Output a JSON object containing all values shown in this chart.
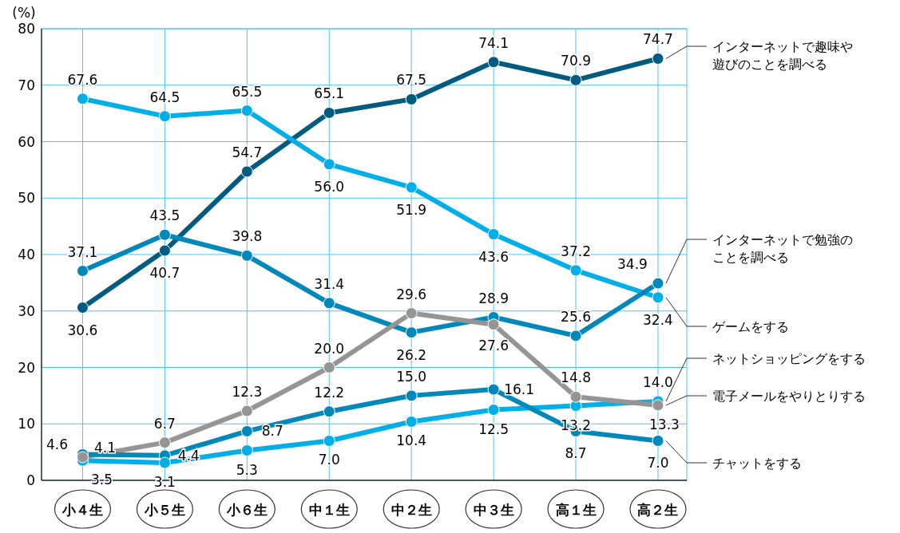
{
  "chart_data": {
    "type": "line",
    "ylabel": "(%)",
    "categories": [
      "小４生",
      "小５生",
      "小６生",
      "中１生",
      "中２生",
      "中３生",
      "高１生",
      "高２生"
    ],
    "ylim": [
      0,
      80
    ],
    "yticks": [
      0,
      10,
      20,
      30,
      40,
      50,
      60,
      70,
      80
    ],
    "grid": true,
    "marker": "circle",
    "series": [
      {
        "name": "インターネットで趣味や遊びのことを調べる",
        "color": "#005b80",
        "values": [
          30.6,
          40.7,
          54.7,
          65.1,
          67.5,
          74.1,
          70.9,
          74.7
        ],
        "value_labels": [
          "30.6",
          "40.7",
          "54.7",
          "65.1",
          "67.5",
          "74.1",
          "70.9",
          "74.7"
        ]
      },
      {
        "name": "ゲームをする",
        "color": "#00aee8",
        "values": [
          67.6,
          64.5,
          65.5,
          56.0,
          51.9,
          43.6,
          37.2,
          32.4
        ],
        "value_labels": [
          "67.6",
          "64.5",
          "65.5",
          "56.0",
          "51.9",
          "43.6",
          "37.2",
          "32.4"
        ]
      },
      {
        "name": "インターネットで勉強のことを調べる",
        "color": "#0088bb",
        "values": [
          37.1,
          43.5,
          39.8,
          31.4,
          26.2,
          28.9,
          25.6,
          34.9
        ],
        "value_labels": [
          "37.1",
          "43.5",
          "39.8",
          "31.4",
          "26.2",
          "28.9",
          "25.6",
          "34.9"
        ]
      },
      {
        "name": "ネットショッピングをする",
        "color": "#00aee8",
        "values": [
          3.5,
          3.1,
          5.3,
          7.0,
          10.4,
          12.5,
          13.2,
          14.0
        ],
        "value_labels": [
          "3.5",
          "3.1",
          "5.3",
          "7.0",
          "10.4",
          "12.5",
          "13.2",
          "14.0"
        ]
      },
      {
        "name": "電子メールをやりとりする",
        "color": "#959595",
        "values": [
          4.1,
          6.7,
          12.3,
          20.0,
          29.6,
          27.6,
          14.8,
          13.3
        ],
        "value_labels": [
          "4.1",
          "6.7",
          "12.3",
          "20.0",
          "29.6",
          "27.6",
          "14.8",
          "13.3"
        ]
      },
      {
        "name": "チャットをする",
        "color": "#0088bb",
        "values": [
          4.6,
          4.4,
          8.7,
          12.2,
          15.0,
          16.1,
          8.7,
          7.0
        ],
        "value_labels": [
          "4.6",
          "4.4",
          "8.7",
          "12.2",
          "15.0",
          "16.1",
          "8.7",
          "7.0"
        ]
      }
    ]
  }
}
